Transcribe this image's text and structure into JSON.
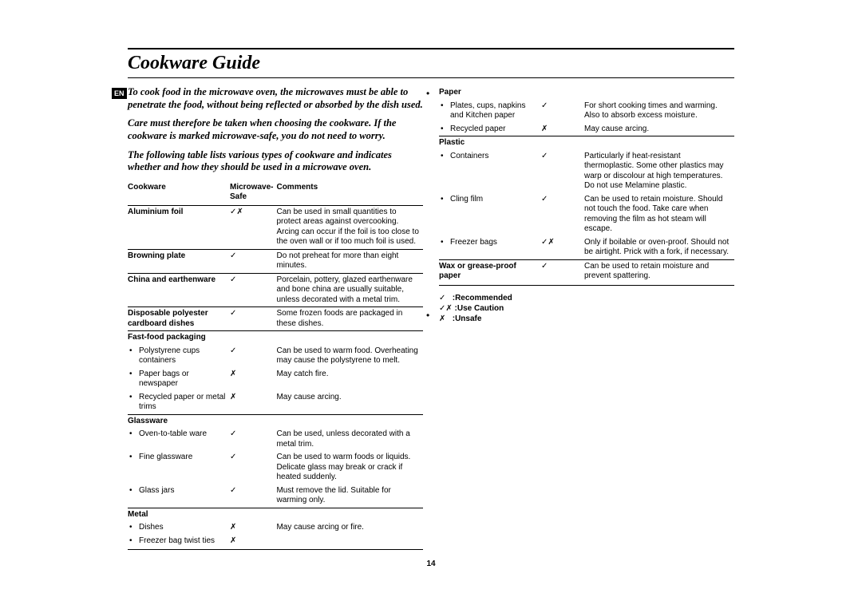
{
  "lang_badge": "EN",
  "title": "Cookware Guide",
  "page_number": "14",
  "intro": {
    "p1": "To cook food in the microwave oven, the microwaves must be able to penetrate the food, without being reflected or absorbed by the dish used.",
    "p2": "Care must therefore be taken when choosing the cookware. If the cookware is marked microwave-safe, you do not need to worry.",
    "p3": "The following table lists various types of cookware and indicates whether and how they should be used in a microwave oven."
  },
  "headers": {
    "cookware": "Cookware",
    "safe": "Microwave-Safe",
    "comments": "Comments"
  },
  "symbols": {
    "check": "✓",
    "cross": "✗",
    "caution": "✓✗"
  },
  "left_rows": [
    {
      "type": "row",
      "name": "Aluminium foil",
      "safe": "caution",
      "comment": "Can be used in small quantities to protect areas against overcooking. Arcing can occur if the foil is too close to the oven wall or if too much foil is used."
    },
    {
      "type": "hr"
    },
    {
      "type": "row",
      "name": "Browning plate",
      "safe": "check",
      "comment": "Do not preheat for more than eight minutes."
    },
    {
      "type": "hr"
    },
    {
      "type": "row",
      "name": "China and earthenware",
      "safe": "check",
      "comment": "Porcelain, pottery, glazed earthenware and bone china are usually suitable, unless decorated with a metal trim."
    },
    {
      "type": "hr"
    },
    {
      "type": "row",
      "name": "Disposable polyester cardboard dishes",
      "safe": "check",
      "comment": "Some frozen foods are packaged in these dishes."
    },
    {
      "type": "hr"
    },
    {
      "type": "head",
      "name": "Fast-food packaging"
    },
    {
      "type": "sub",
      "name": "Polystyrene cups containers",
      "safe": "check",
      "comment": "Can be used to warm food. Overheating may cause the polystyrene to melt."
    },
    {
      "type": "sub",
      "name": "Paper bags or newspaper",
      "safe": "cross",
      "comment": "May catch fire."
    },
    {
      "type": "sub",
      "name": "Recycled paper or metal trims",
      "safe": "cross",
      "comment": "May cause arcing."
    },
    {
      "type": "hr"
    },
    {
      "type": "head",
      "name": "Glassware"
    },
    {
      "type": "sub",
      "name": "Oven-to-table ware",
      "safe": "check",
      "comment": "Can be used, unless decorated with a metal trim."
    },
    {
      "type": "sub",
      "name": "Fine glassware",
      "safe": "check",
      "comment": "Can be used to warm foods or liquids. Delicate glass may break or crack if heated suddenly."
    },
    {
      "type": "sub",
      "name": "Glass jars",
      "safe": "check",
      "comment": "Must remove the lid. Suitable for warming only."
    },
    {
      "type": "hr"
    },
    {
      "type": "head",
      "name": "Metal"
    },
    {
      "type": "sub",
      "name": "Dishes",
      "safe": "cross",
      "comment": "May cause arcing or fire."
    },
    {
      "type": "sub",
      "name": "Freezer bag twist ties",
      "safe": "cross",
      "comment": ""
    }
  ],
  "right_rows": [
    {
      "type": "head",
      "name": "Paper"
    },
    {
      "type": "sub",
      "name": "Plates, cups, napkins and Kitchen paper",
      "safe": "check",
      "comment": "For short cooking times and warming. Also to absorb excess moisture."
    },
    {
      "type": "sub",
      "name": "Recycled paper",
      "safe": "cross",
      "comment": "May cause arcing."
    },
    {
      "type": "hr"
    },
    {
      "type": "head",
      "name": "Plastic"
    },
    {
      "type": "sub",
      "name": "Containers",
      "safe": "check",
      "comment": "Particularly if heat-resistant thermoplastic. Some other plastics may warp or discolour at high temperatures. Do not use Melamine plastic."
    },
    {
      "type": "sub",
      "name": "Cling film",
      "safe": "check",
      "comment": "Can be used to retain moisture. Should not touch the food. Take care when removing the film as hot steam will escape."
    },
    {
      "type": "sub",
      "name": "Freezer bags",
      "safe": "caution",
      "comment": "Only if boilable or oven-proof. Should not be airtight. Prick with a fork, if necessary."
    },
    {
      "type": "hr"
    },
    {
      "type": "row",
      "name": "Wax or grease-proof paper",
      "safe": "check",
      "comment": "Can be used to retain moisture and prevent spattering."
    }
  ],
  "legend": {
    "recommended": ":Recommended",
    "use_caution": ":Use Caution",
    "unsafe": ":Unsafe"
  }
}
